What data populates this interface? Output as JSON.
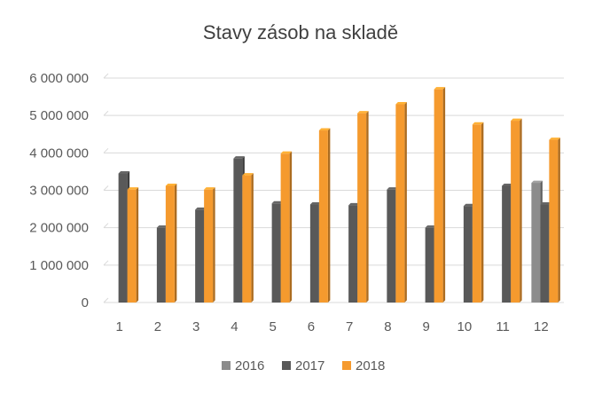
{
  "chart_data": {
    "type": "bar",
    "title": "Stavy zásob na skladě",
    "xlabel": "",
    "ylabel": "",
    "categories": [
      "1",
      "2",
      "3",
      "4",
      "5",
      "6",
      "7",
      "8",
      "9",
      "10",
      "11",
      "12"
    ],
    "ylim": [
      0,
      6000000
    ],
    "yticks": [
      0,
      1000000,
      2000000,
      3000000,
      4000000,
      5000000,
      6000000
    ],
    "ytick_labels": [
      "0",
      "1 000 000",
      "2 000 000",
      "3 000 000",
      "4 000 000",
      "5 000 000",
      "6 000 000"
    ],
    "grid": true,
    "legend_position": "bottom",
    "series": [
      {
        "name": "2016",
        "color": "#8c8c8c",
        "values": [
          null,
          null,
          null,
          null,
          null,
          null,
          null,
          null,
          null,
          null,
          null,
          3200000
        ]
      },
      {
        "name": "2017",
        "color": "#595959",
        "values": [
          3450000,
          2000000,
          2480000,
          3850000,
          2650000,
          2620000,
          2600000,
          3020000,
          2000000,
          2580000,
          3120000,
          2620000
        ]
      },
      {
        "name": "2018",
        "color": "#f59a2e",
        "values": [
          3020000,
          3120000,
          3020000,
          3400000,
          3980000,
          4600000,
          5060000,
          5300000,
          5700000,
          4760000,
          4860000,
          4350000
        ]
      }
    ]
  }
}
